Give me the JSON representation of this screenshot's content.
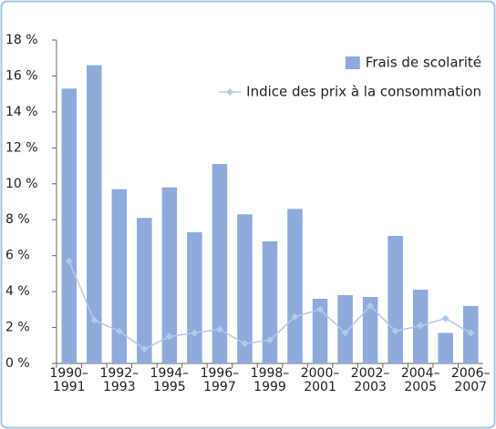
{
  "chart_data": {
    "type": "bar",
    "categories": [
      "1990–\n1991",
      null,
      "1992–\n1993",
      null,
      "1994–\n1995",
      null,
      "1996–\n1997",
      null,
      "1998–\n1999",
      null,
      "2000–\n2001",
      null,
      "2002–\n2003",
      null,
      "2004–\n2005",
      null,
      "2006–\n2007"
    ],
    "series": [
      {
        "name": "Frais de scolarité",
        "type": "bar",
        "color": "#8eaadb",
        "values": [
          15.3,
          16.6,
          9.7,
          8.1,
          9.8,
          7.3,
          11.1,
          8.3,
          6.8,
          8.6,
          3.6,
          3.8,
          3.7,
          7.1,
          4.1,
          1.7,
          3.2
        ]
      },
      {
        "name": "Indice des prix à la consommation",
        "type": "line",
        "color": "#b4c8ec",
        "values": [
          5.7,
          2.4,
          1.8,
          0.8,
          1.5,
          1.7,
          1.9,
          1.1,
          1.3,
          2.6,
          3.0,
          1.7,
          3.2,
          1.8,
          2.1,
          2.5,
          1.7
        ]
      }
    ],
    "ylim": [
      0,
      18
    ],
    "yticks": [
      {
        "value": 0,
        "label": "0 %"
      },
      {
        "value": 2,
        "label": "2 %"
      },
      {
        "value": 4,
        "label": "4 %"
      },
      {
        "value": 6,
        "label": "6 %"
      },
      {
        "value": 8,
        "label": "8 %"
      },
      {
        "value": 10,
        "label": "10 %"
      },
      {
        "value": 12,
        "label": "12 %"
      },
      {
        "value": 14,
        "label": "14 %"
      },
      {
        "value": 16,
        "label": "16 %"
      },
      {
        "value": 18,
        "label": "18 %"
      }
    ],
    "grid": false,
    "legend": "top-right"
  }
}
